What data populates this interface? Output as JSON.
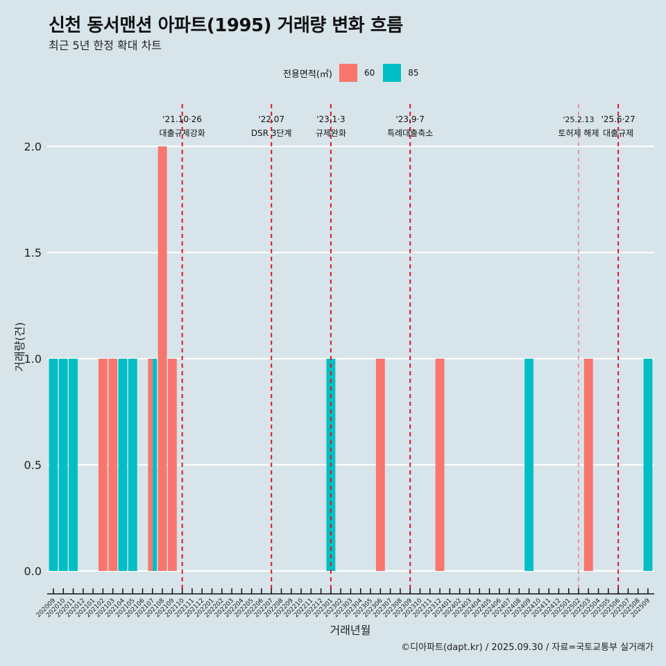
{
  "header": {
    "title": "신천 동서맨션 아파트(1995) 거래량 변화 흐름",
    "subtitle": "최근 5년 한정 확대 차트"
  },
  "legend": {
    "title": "전용면적(㎡)",
    "items": [
      {
        "label": "60",
        "color": "#f8766d"
      },
      {
        "label": "85",
        "color": "#00bfc4"
      }
    ]
  },
  "footer": {
    "credit": "©디아파트(dapt.kr) / 2025.09.30 / 자료=국토교통부 실거래가"
  },
  "chart_data": {
    "type": "bar",
    "title": "신천 동서맨션 아파트(1995) 거래량 변화 흐름",
    "subtitle": "최근 5년 한정 확대 차트",
    "xlabel": "거래년월",
    "ylabel": "거래량(건)",
    "ylim": [
      0,
      2
    ],
    "yticks": [
      "0.0",
      "0.5",
      "1.0",
      "1.5",
      "2.0"
    ],
    "grid": true,
    "legend_position": "top",
    "categories": [
      "202009",
      "202010",
      "202011",
      "202012",
      "202101",
      "202102",
      "202103",
      "202104",
      "202105",
      "202106",
      "202107",
      "202108",
      "202109",
      "202110",
      "202111",
      "202112",
      "202201",
      "202202",
      "202203",
      "202204",
      "202205",
      "202206",
      "202207",
      "202208",
      "202209",
      "202210",
      "202211",
      "202212",
      "202301",
      "202302",
      "202303",
      "202304",
      "202305",
      "202306",
      "202307",
      "202308",
      "202309",
      "202310",
      "202311",
      "202312",
      "202401",
      "202402",
      "202403",
      "202404",
      "202405",
      "202406",
      "202407",
      "202408",
      "202409",
      "202410",
      "202411",
      "202412",
      "202501",
      "202502",
      "202503",
      "202504",
      "202505",
      "202506",
      "202507",
      "202508",
      "202509"
    ],
    "series": [
      {
        "name": "60",
        "color": "#f8766d",
        "values": [
          0,
          0,
          0,
          0,
          0,
          1,
          1,
          0,
          0,
          0,
          1,
          2,
          1,
          0,
          0,
          0,
          0,
          0,
          0,
          0,
          0,
          0,
          0,
          0,
          0,
          0,
          0,
          0,
          0,
          0,
          0,
          0,
          0,
          1,
          0,
          0,
          0,
          0,
          0,
          1,
          0,
          0,
          0,
          0,
          0,
          0,
          0,
          0,
          0,
          0,
          0,
          0,
          0,
          0,
          1,
          0,
          0,
          0,
          0,
          0,
          0
        ]
      },
      {
        "name": "85",
        "color": "#00bfc4",
        "values": [
          1,
          1,
          1,
          0,
          0,
          0,
          0,
          1,
          1,
          0,
          1,
          0,
          0,
          0,
          0,
          0,
          0,
          0,
          0,
          0,
          0,
          0,
          0,
          0,
          0,
          0,
          0,
          0,
          1,
          0,
          0,
          0,
          0,
          0,
          0,
          0,
          0,
          0,
          0,
          0,
          0,
          0,
          0,
          0,
          0,
          0,
          0,
          0,
          1,
          0,
          0,
          0,
          0,
          0,
          0,
          0,
          0,
          0,
          0,
          0,
          1
        ]
      }
    ],
    "annotations": [
      {
        "month": "202110",
        "date": "'21.10·26",
        "text": "대출규제강화",
        "style": "bold"
      },
      {
        "month": "202207",
        "date": "'22.07",
        "text": "DSR 3단계",
        "style": "bold"
      },
      {
        "month": "202301",
        "date": "'23.1·3",
        "text": "규제완화",
        "style": "bold"
      },
      {
        "month": "202309",
        "date": "'23.9·7",
        "text": "특례대출축소",
        "style": "bold"
      },
      {
        "month": "202502",
        "date": "'25.2.13",
        "text": "토허제 해제",
        "style": "thin"
      },
      {
        "month": "202506",
        "date": "'25.6·27",
        "text": "대출규제",
        "style": "bold"
      }
    ]
  }
}
